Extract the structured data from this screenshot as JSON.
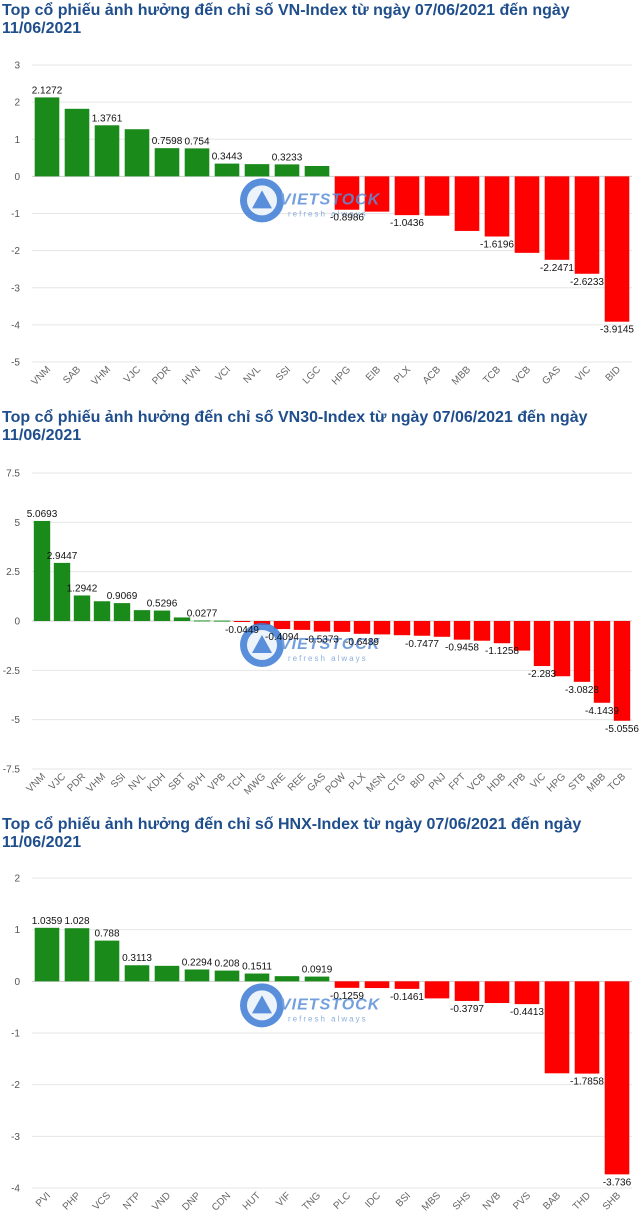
{
  "colors": {
    "positive": "#1a8a1a",
    "negative": "#ff0000",
    "title": "#1f4e8c",
    "grid": "#e6e6e6",
    "axis": "#cccccc"
  },
  "watermark": {
    "brand": "VIETSTOCK",
    "tagline": "refresh always",
    "icon": "vietstock-logo-icon"
  },
  "charts": [
    {
      "title": "Top cổ phiếu ảnh hưởng đến chỉ số VN-Index từ ngày 07/06/2021 đến ngày 11/06/2021"
    },
    {
      "title": "Top cổ phiếu ảnh hưởng đến chỉ số VN30-Index từ ngày 07/06/2021 đến ngày 11/06/2021"
    },
    {
      "title": "Top cổ phiếu ảnh hưởng đến chỉ số HNX-Index từ ngày 07/06/2021 đến ngày 11/06/2021"
    }
  ],
  "chart_data": [
    {
      "type": "bar",
      "title": "Top cổ phiếu ảnh hưởng đến chỉ số VN-Index từ ngày 07/06/2021 đến ngày 11/06/2021",
      "categories": [
        "VNM",
        "SAB",
        "VHM",
        "VJC",
        "PDR",
        "HVN",
        "VCI",
        "NVL",
        "SSI",
        "LGC",
        "HPG",
        "EIB",
        "PLX",
        "ACB",
        "MBB",
        "TCB",
        "VCB",
        "GAS",
        "VIC",
        "BID"
      ],
      "values": [
        2.1272,
        1.82,
        1.3761,
        1.27,
        0.7598,
        0.754,
        0.3443,
        0.33,
        0.3233,
        0.28,
        -0.8986,
        -0.95,
        -1.0436,
        -1.06,
        -1.47,
        -1.6196,
        -2.06,
        -2.2471,
        -2.6233,
        -3.9145
      ],
      "data_labels": [
        "2.1272",
        "",
        "1.3761",
        "",
        "0.7598",
        "0.754",
        "0.3443",
        "",
        "0.3233",
        "",
        "-0.8986",
        "",
        "-1.0436",
        "",
        "",
        "-1.6196",
        "",
        "-2.2471",
        "-2.6233",
        "-3.9145"
      ],
      "ylim": [
        -5,
        3
      ],
      "yticks": [
        3,
        2,
        1,
        0,
        -1,
        -2,
        -3,
        -4,
        -5
      ],
      "ytick_labels": [
        "3",
        "2",
        "1",
        "0",
        "-1",
        "-2",
        "-3",
        "-4",
        "-5"
      ],
      "grid": true,
      "xlabel": "",
      "ylabel": ""
    },
    {
      "type": "bar",
      "title": "Top cổ phiếu ảnh hưởng đến chỉ số VN30-Index từ ngày 07/06/2021 đến ngày 11/06/2021",
      "categories": [
        "VNM",
        "VJC",
        "PDR",
        "VHM",
        "SSI",
        "NVL",
        "KDH",
        "SBT",
        "BVH",
        "VPB",
        "TCH",
        "MWG",
        "VRE",
        "REE",
        "GAS",
        "POW",
        "PLX",
        "MSN",
        "CTG",
        "BID",
        "PNJ",
        "FPT",
        "VCB",
        "HDB",
        "TPB",
        "VIC",
        "HPG",
        "STB",
        "MBB",
        "TCB"
      ],
      "values": [
        5.0693,
        2.9447,
        1.2942,
        1.0,
        0.9069,
        0.55,
        0.5296,
        0.18,
        0.0277,
        0.02,
        -0.0449,
        -0.2,
        -0.4094,
        -0.45,
        -0.5373,
        -0.55,
        -0.6489,
        -0.68,
        -0.72,
        -0.7477,
        -0.8,
        -0.9458,
        -1.0,
        -1.1258,
        -1.5,
        -2.283,
        -2.8,
        -3.0828,
        -4.1439,
        -5.0556
      ],
      "data_labels": [
        "5.0693",
        "2.9447",
        "1.2942",
        "",
        "0.9069",
        "",
        "0.5296",
        "",
        "0.0277",
        "",
        "-0.0449",
        "",
        "-0.4094",
        "",
        "-0.5373",
        "",
        "-0.6489",
        "",
        "",
        "-0.7477",
        "",
        "-0.9458",
        "",
        "-1.1258",
        "",
        "-2.283",
        "",
        "-3.0828",
        "-4.1439",
        "-5.0556"
      ],
      "ylim": [
        -7.5,
        7.5
      ],
      "yticks": [
        7.5,
        5,
        2.5,
        0,
        -2.5,
        -5,
        -7.5
      ],
      "ytick_labels": [
        "7.5",
        "5",
        "2.5",
        "0",
        "-2.5",
        "-5",
        "-7.5"
      ],
      "grid": true,
      "xlabel": "",
      "ylabel": ""
    },
    {
      "type": "bar",
      "title": "Top cổ phiếu ảnh hưởng đến chỉ số HNX-Index từ ngày 07/06/2021 đến ngày 11/06/2021",
      "categories": [
        "PVI",
        "PHP",
        "VCS",
        "NTP",
        "VND",
        "DNP",
        "CDN",
        "HUT",
        "VIF",
        "TNG",
        "PLC",
        "IDC",
        "BSI",
        "MBS",
        "SHS",
        "NVB",
        "PVS",
        "BAB",
        "THD",
        "SHB"
      ],
      "values": [
        1.0359,
        1.028,
        0.788,
        0.3113,
        0.3,
        0.2294,
        0.208,
        0.1511,
        0.1,
        0.0919,
        -0.1259,
        -0.13,
        -0.1461,
        -0.33,
        -0.3797,
        -0.42,
        -0.4413,
        -1.78,
        -1.7858,
        -3.736
      ],
      "data_labels": [
        "1.0359",
        "1.028",
        "0.788",
        "0.3113",
        "",
        "0.2294",
        "0.208",
        "0.1511",
        "",
        "0.0919",
        "-0.1259",
        "",
        "-0.1461",
        "",
        "-0.3797",
        "",
        "-0.4413",
        "",
        "-1.7858",
        "-3.736"
      ],
      "ylim": [
        -4,
        2
      ],
      "yticks": [
        2,
        1,
        0,
        -1,
        -2,
        -3,
        -4
      ],
      "ytick_labels": [
        "2",
        "1",
        "0",
        "-1",
        "-2",
        "-3",
        "-4"
      ],
      "grid": true,
      "xlabel": "",
      "ylabel": ""
    }
  ]
}
